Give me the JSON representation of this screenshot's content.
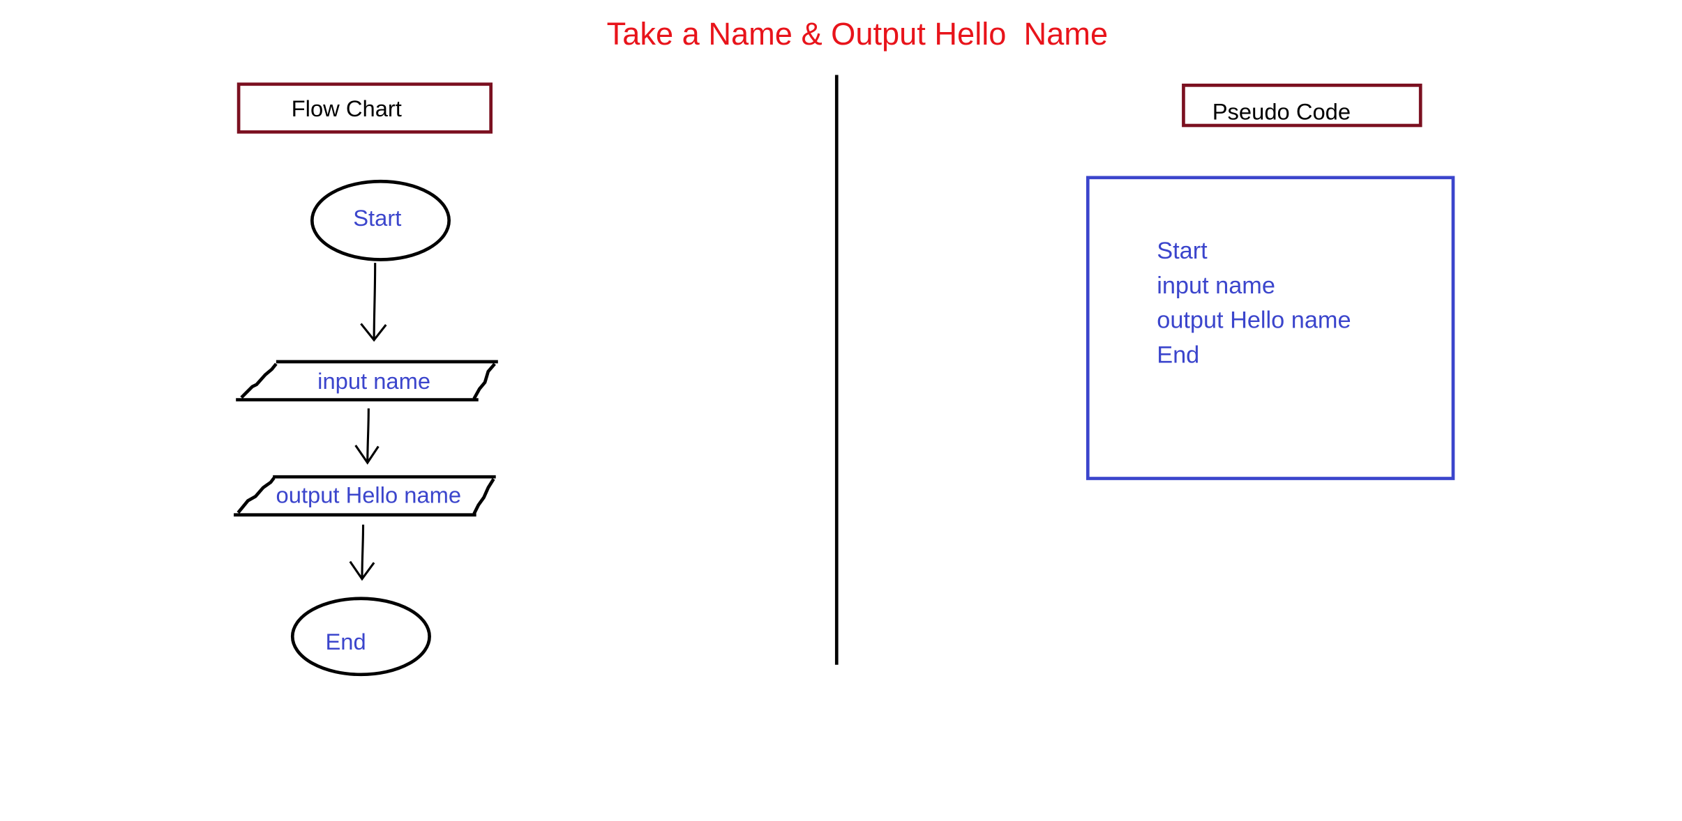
{
  "title": "Take a Name & Output Hello  Name",
  "flow_chart": {
    "label": "Flow Chart",
    "nodes": [
      {
        "id": "start",
        "shape": "terminator",
        "text": "Start"
      },
      {
        "id": "input",
        "shape": "parallelogram",
        "text": "input name"
      },
      {
        "id": "output",
        "shape": "parallelogram",
        "text": "output Hello name"
      },
      {
        "id": "end",
        "shape": "terminator",
        "text": "End"
      }
    ],
    "edges": [
      {
        "from": "start",
        "to": "input"
      },
      {
        "from": "input",
        "to": "output"
      },
      {
        "from": "output",
        "to": "end"
      }
    ]
  },
  "pseudo_code": {
    "label": "Pseudo Code",
    "lines": [
      "Start",
      "input name",
      "output Hello name",
      "End"
    ]
  },
  "colors": {
    "title": "#e8141b",
    "label_border": "#7b1020",
    "node_text": "#3b45cc",
    "code_border": "#3b45cc",
    "code_text": "#3b45cc",
    "stroke": "#000000"
  }
}
